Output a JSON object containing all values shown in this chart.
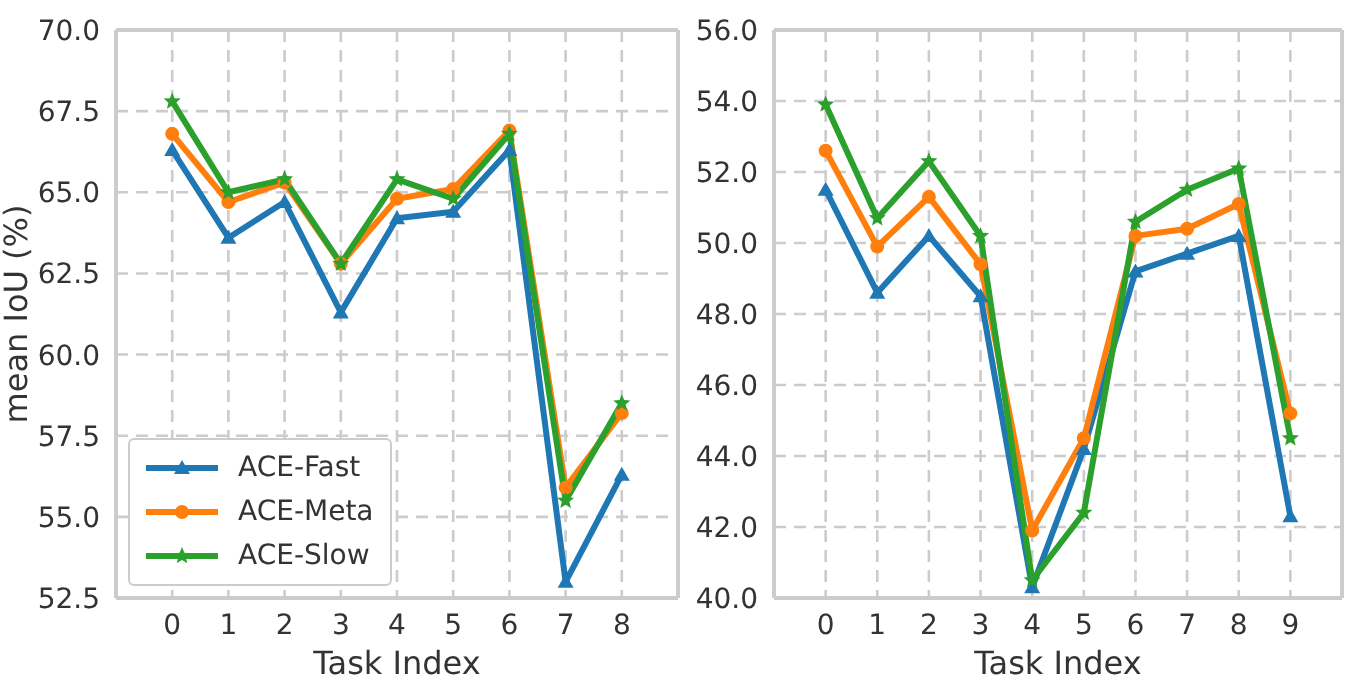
{
  "chart_data": [
    {
      "type": "line",
      "xlabel": "Task Index",
      "ylabel": "mean IoU (%)",
      "x": [
        0,
        1,
        2,
        3,
        4,
        5,
        6,
        7,
        8
      ],
      "xlim": [
        -1,
        9
      ],
      "xticks": [
        0,
        1,
        2,
        3,
        4,
        5,
        6,
        7,
        8
      ],
      "ylim": [
        52.5,
        70
      ],
      "yticks": [
        {
          "value": 52.5,
          "label": "52.5"
        },
        {
          "value": 55,
          "label": "55.0"
        },
        {
          "value": 57.5,
          "label": "57.5"
        },
        {
          "value": 60,
          "label": "60.0"
        },
        {
          "value": 62.5,
          "label": "62.5"
        },
        {
          "value": 65,
          "label": "65.0"
        },
        {
          "value": 67.5,
          "label": "67.5"
        },
        {
          "value": 70,
          "label": "70.0"
        }
      ],
      "grid": true,
      "legend": "bottom left",
      "series": [
        {
          "name": "ACE-Fast",
          "color": "#1f77b4",
          "marker": "triangle",
          "values": [
            66.3,
            63.6,
            64.7,
            61.3,
            64.2,
            64.4,
            66.3,
            53.0,
            56.3
          ]
        },
        {
          "name": "ACE-Meta",
          "color": "#ff7f0e",
          "marker": "circle",
          "values": [
            66.8,
            64.7,
            65.3,
            62.8,
            64.8,
            65.1,
            66.9,
            55.9,
            58.2
          ]
        },
        {
          "name": "ACE-Slow",
          "color": "#2ca02c",
          "marker": "star",
          "values": [
            67.8,
            65.0,
            65.4,
            62.8,
            65.4,
            64.8,
            66.8,
            55.5,
            58.5
          ]
        }
      ]
    },
    {
      "type": "line",
      "xlabel": "Task Index",
      "x": [
        0,
        1,
        2,
        3,
        4,
        5,
        6,
        7,
        8,
        9
      ],
      "xlim": [
        -1,
        10
      ],
      "xticks": [
        0,
        1,
        2,
        3,
        4,
        5,
        6,
        7,
        8,
        9
      ],
      "ylim": [
        40,
        56
      ],
      "yticks": [
        {
          "value": 40,
          "label": "40.0"
        },
        {
          "value": 42,
          "label": "42.0"
        },
        {
          "value": 44,
          "label": "44.0"
        },
        {
          "value": 46,
          "label": "46.0"
        },
        {
          "value": 48,
          "label": "48.0"
        },
        {
          "value": 50,
          "label": "50.0"
        },
        {
          "value": 52,
          "label": "52.0"
        },
        {
          "value": 54,
          "label": "54.0"
        },
        {
          "value": 56,
          "label": "56.0"
        }
      ],
      "grid": true,
      "series": [
        {
          "color": "#1f77b4",
          "marker": "triangle",
          "values": [
            51.5,
            48.6,
            50.2,
            48.5,
            40.3,
            44.2,
            49.2,
            49.7,
            50.2,
            42.3
          ]
        },
        {
          "color": "#ff7f0e",
          "marker": "circle",
          "values": [
            52.6,
            49.9,
            51.3,
            49.4,
            41.9,
            44.5,
            50.2,
            50.4,
            51.1,
            45.2
          ]
        },
        {
          "color": "#2ca02c",
          "marker": "star",
          "values": [
            53.9,
            50.7,
            52.3,
            50.2,
            40.5,
            42.4,
            50.6,
            51.5,
            52.1,
            44.5
          ]
        }
      ]
    }
  ]
}
